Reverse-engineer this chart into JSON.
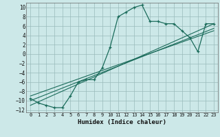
{
  "title": "",
  "xlabel": "Humidex (Indice chaleur)",
  "ylabel": "",
  "background_color": "#cce8e8",
  "grid_color": "#99bbbb",
  "line_color": "#1a6b5a",
  "xlim": [
    -0.5,
    23.5
  ],
  "ylim": [
    -12.5,
    11
  ],
  "xticks": [
    0,
    1,
    2,
    3,
    4,
    5,
    6,
    7,
    8,
    9,
    10,
    11,
    12,
    13,
    14,
    15,
    16,
    17,
    18,
    19,
    20,
    21,
    22,
    23
  ],
  "yticks": [
    -12,
    -10,
    -8,
    -6,
    -4,
    -2,
    0,
    2,
    4,
    6,
    8,
    10
  ],
  "curve1_x": [
    0,
    1,
    2,
    3,
    4,
    5,
    6,
    7,
    8,
    9,
    10,
    11,
    12,
    13,
    14,
    15,
    16,
    17,
    18,
    19,
    20,
    21,
    22,
    23
  ],
  "curve1_y": [
    -9.5,
    -10.5,
    -11.0,
    -11.5,
    -11.5,
    -9.0,
    -6.0,
    -5.5,
    -5.5,
    -3.0,
    1.5,
    8.0,
    9.0,
    10.0,
    10.5,
    7.0,
    7.0,
    6.5,
    6.5,
    5.0,
    3.5,
    0.5,
    6.5,
    6.5
  ],
  "line1_x": [
    0,
    23
  ],
  "line1_y": [
    -11.0,
    6.5
  ],
  "line2_x": [
    0,
    23
  ],
  "line2_y": [
    -10.0,
    5.5
  ],
  "line3_x": [
    0,
    23
  ],
  "line3_y": [
    -9.0,
    5.0
  ]
}
